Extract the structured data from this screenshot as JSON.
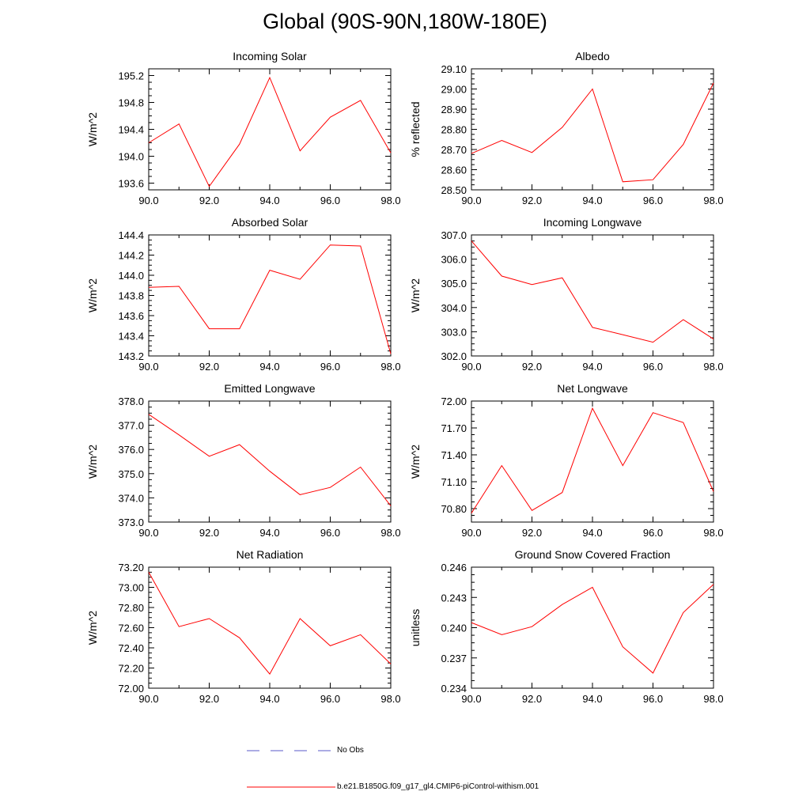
{
  "title": "Global (90S-90N,180W-180E)",
  "legend": {
    "obs_label": "No Obs",
    "obs_color": "#5a5ac8",
    "model_label": "b.e21.B1850G.f09_g17_gl4.CMIP6-piControl-withism.001",
    "model_color": "#ff0000"
  },
  "chart_data": [
    {
      "type": "line",
      "title": "Incoming Solar",
      "ylabel": "W/m^2",
      "xlim": [
        90,
        98
      ],
      "ylim": [
        193.5,
        195.3
      ],
      "xticks": [
        "90.0",
        "92.0",
        "94.0",
        "96.0",
        "98.0"
      ],
      "yticks": [
        {
          "v": 193.6,
          "label": "193.6"
        },
        {
          "v": 194.0,
          "label": "194.0"
        },
        {
          "v": 194.4,
          "label": "194.4"
        },
        {
          "v": 194.8,
          "label": "194.8"
        },
        {
          "v": 195.2,
          "label": "195.2"
        }
      ],
      "x": [
        90,
        91,
        92,
        93,
        94,
        95,
        96,
        97,
        98
      ],
      "values": [
        194.2,
        194.48,
        193.55,
        194.18,
        195.17,
        194.08,
        194.58,
        194.83,
        194.05
      ]
    },
    {
      "type": "line",
      "title": "Albedo",
      "ylabel": "% reflected",
      "xlim": [
        90,
        98
      ],
      "ylim": [
        28.5,
        29.1
      ],
      "xticks": [
        "90.0",
        "92.0",
        "94.0",
        "96.0",
        "98.0"
      ],
      "yticks": [
        {
          "v": 28.5,
          "label": "28.50"
        },
        {
          "v": 28.6,
          "label": "28.60"
        },
        {
          "v": 28.7,
          "label": "28.70"
        },
        {
          "v": 28.8,
          "label": "28.80"
        },
        {
          "v": 28.9,
          "label": "28.90"
        },
        {
          "v": 29.0,
          "label": "29.00"
        },
        {
          "v": 29.1,
          "label": "29.10"
        }
      ],
      "x": [
        90,
        91,
        92,
        93,
        94,
        95,
        96,
        97,
        98
      ],
      "values": [
        28.68,
        28.745,
        28.685,
        28.81,
        29.0,
        28.54,
        28.55,
        28.725,
        29.03
      ]
    },
    {
      "type": "line",
      "title": "Absorbed Solar",
      "ylabel": "W/m^2",
      "xlim": [
        90,
        98
      ],
      "ylim": [
        143.2,
        144.4
      ],
      "xticks": [
        "90.0",
        "92.0",
        "94.0",
        "96.0",
        "98.0"
      ],
      "yticks": [
        {
          "v": 143.2,
          "label": "143.2"
        },
        {
          "v": 143.4,
          "label": "143.4"
        },
        {
          "v": 143.6,
          "label": "143.6"
        },
        {
          "v": 143.8,
          "label": "143.8"
        },
        {
          "v": 144.0,
          "label": "144.0"
        },
        {
          "v": 144.2,
          "label": "144.2"
        },
        {
          "v": 144.4,
          "label": "144.4"
        }
      ],
      "x": [
        90,
        91,
        92,
        93,
        94,
        95,
        96,
        97,
        98
      ],
      "values": [
        143.88,
        143.89,
        143.47,
        143.47,
        144.05,
        143.96,
        144.3,
        144.29,
        143.22
      ]
    },
    {
      "type": "line",
      "title": "Incoming Longwave",
      "ylabel": "W/m^2",
      "xlim": [
        90,
        98
      ],
      "ylim": [
        302.0,
        307.0
      ],
      "xticks": [
        "90.0",
        "92.0",
        "94.0",
        "96.0",
        "98.0"
      ],
      "yticks": [
        {
          "v": 302.0,
          "label": "302.0"
        },
        {
          "v": 303.0,
          "label": "303.0"
        },
        {
          "v": 304.0,
          "label": "304.0"
        },
        {
          "v": 305.0,
          "label": "305.0"
        },
        {
          "v": 306.0,
          "label": "306.0"
        },
        {
          "v": 307.0,
          "label": "307.0"
        }
      ],
      "x": [
        90,
        91,
        92,
        93,
        94,
        95,
        96,
        97,
        98
      ],
      "values": [
        306.75,
        305.3,
        304.95,
        305.23,
        303.18,
        302.88,
        302.57,
        303.5,
        302.7
      ]
    },
    {
      "type": "line",
      "title": "Emitted Longwave",
      "ylabel": "W/m^2",
      "xlim": [
        90,
        98
      ],
      "ylim": [
        373.0,
        378.0
      ],
      "xticks": [
        "90.0",
        "92.0",
        "94.0",
        "96.0",
        "98.0"
      ],
      "yticks": [
        {
          "v": 373.0,
          "label": "373.0"
        },
        {
          "v": 374.0,
          "label": "374.0"
        },
        {
          "v": 375.0,
          "label": "375.0"
        },
        {
          "v": 376.0,
          "label": "376.0"
        },
        {
          "v": 377.0,
          "label": "377.0"
        },
        {
          "v": 378.0,
          "label": "378.0"
        }
      ],
      "x": [
        90,
        91,
        92,
        93,
        94,
        95,
        96,
        97,
        98
      ],
      "values": [
        377.45,
        376.6,
        375.72,
        376.2,
        375.1,
        374.13,
        374.43,
        375.27,
        373.67
      ]
    },
    {
      "type": "line",
      "title": "Net Longwave",
      "ylabel": "W/m^2",
      "xlim": [
        90,
        98
      ],
      "ylim": [
        70.65,
        72.0
      ],
      "xticks": [
        "90.0",
        "92.0",
        "94.0",
        "96.0",
        "98.0"
      ],
      "yticks": [
        {
          "v": 70.8,
          "label": "70.80"
        },
        {
          "v": 71.1,
          "label": "71.10"
        },
        {
          "v": 71.4,
          "label": "71.40"
        },
        {
          "v": 71.7,
          "label": "71.70"
        },
        {
          "v": 72.0,
          "label": "72.00"
        }
      ],
      "x": [
        90,
        91,
        92,
        93,
        94,
        95,
        96,
        97,
        98
      ],
      "values": [
        70.75,
        71.28,
        70.78,
        70.98,
        71.92,
        71.28,
        71.87,
        71.76,
        70.99
      ]
    },
    {
      "type": "line",
      "title": "Net Radiation",
      "ylabel": "W/m^2",
      "xlim": [
        90,
        98
      ],
      "ylim": [
        72.0,
        73.2
      ],
      "xticks": [
        "90.0",
        "92.0",
        "94.0",
        "96.0",
        "98.0"
      ],
      "yticks": [
        {
          "v": 72.0,
          "label": "72.00"
        },
        {
          "v": 72.2,
          "label": "72.20"
        },
        {
          "v": 72.4,
          "label": "72.40"
        },
        {
          "v": 72.6,
          "label": "72.60"
        },
        {
          "v": 72.8,
          "label": "72.80"
        },
        {
          "v": 73.0,
          "label": "73.00"
        },
        {
          "v": 73.2,
          "label": "73.20"
        }
      ],
      "x": [
        90,
        91,
        92,
        93,
        94,
        95,
        96,
        97,
        98
      ],
      "values": [
        73.15,
        72.61,
        72.69,
        72.5,
        72.14,
        72.69,
        72.42,
        72.53,
        72.24
      ]
    },
    {
      "type": "line",
      "title": "Ground Snow Covered Fraction",
      "ylabel": "unitless",
      "xlim": [
        90,
        98
      ],
      "ylim": [
        0.234,
        0.246
      ],
      "xticks": [
        "90.0",
        "92.0",
        "94.0",
        "96.0",
        "98.0"
      ],
      "yticks": [
        {
          "v": 0.234,
          "label": "0.234"
        },
        {
          "v": 0.237,
          "label": "0.237"
        },
        {
          "v": 0.24,
          "label": "0.240"
        },
        {
          "v": 0.243,
          "label": "0.243"
        },
        {
          "v": 0.246,
          "label": "0.246"
        }
      ],
      "x": [
        90,
        91,
        92,
        93,
        94,
        95,
        96,
        97,
        98
      ],
      "values": [
        0.2405,
        0.2393,
        0.2401,
        0.2423,
        0.244,
        0.2381,
        0.2355,
        0.2415,
        0.2443
      ]
    }
  ]
}
